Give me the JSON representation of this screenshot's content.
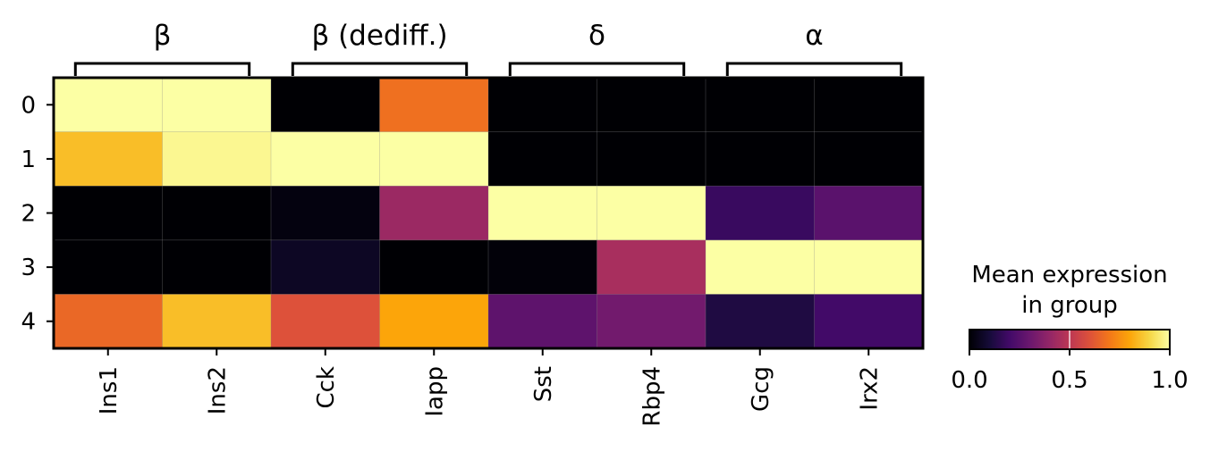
{
  "chart_data": {
    "type": "heatmap",
    "title": "",
    "xlabel": "",
    "ylabel": "",
    "genes": [
      "Ins1",
      "Ins2",
      "Cck",
      "Iapp",
      "Sst",
      "Rbp4",
      "Gcg",
      "Irx2"
    ],
    "groups": [
      "0",
      "1",
      "2",
      "3",
      "4"
    ],
    "gene_groups": [
      {
        "label": "β",
        "genes": [
          "Ins1",
          "Ins2"
        ]
      },
      {
        "label": "β (dediff.)",
        "genes": [
          "Cck",
          "Iapp"
        ]
      },
      {
        "label": "δ",
        "genes": [
          "Sst",
          "Rbp4"
        ]
      },
      {
        "label": "α",
        "genes": [
          "Gcg",
          "Irx2"
        ]
      }
    ],
    "values": [
      [
        1.0,
        1.0,
        0.0,
        0.68,
        0.0,
        0.0,
        0.0,
        0.0
      ],
      [
        0.85,
        0.98,
        1.0,
        1.0,
        0.0,
        0.0,
        0.0,
        0.0
      ],
      [
        0.0,
        0.0,
        0.02,
        0.42,
        1.0,
        1.0,
        0.18,
        0.26
      ],
      [
        0.0,
        0.0,
        0.06,
        0.0,
        0.01,
        0.45,
        1.0,
        1.0
      ],
      [
        0.66,
        0.85,
        0.6,
        0.8,
        0.27,
        0.32,
        0.12,
        0.2
      ]
    ],
    "colormap": "inferno",
    "colorbar": {
      "title_line1": "Mean expression",
      "title_line2": "in group",
      "ticks": [
        "0.0",
        "0.5",
        "1.0"
      ],
      "range": [
        0,
        1
      ]
    }
  }
}
